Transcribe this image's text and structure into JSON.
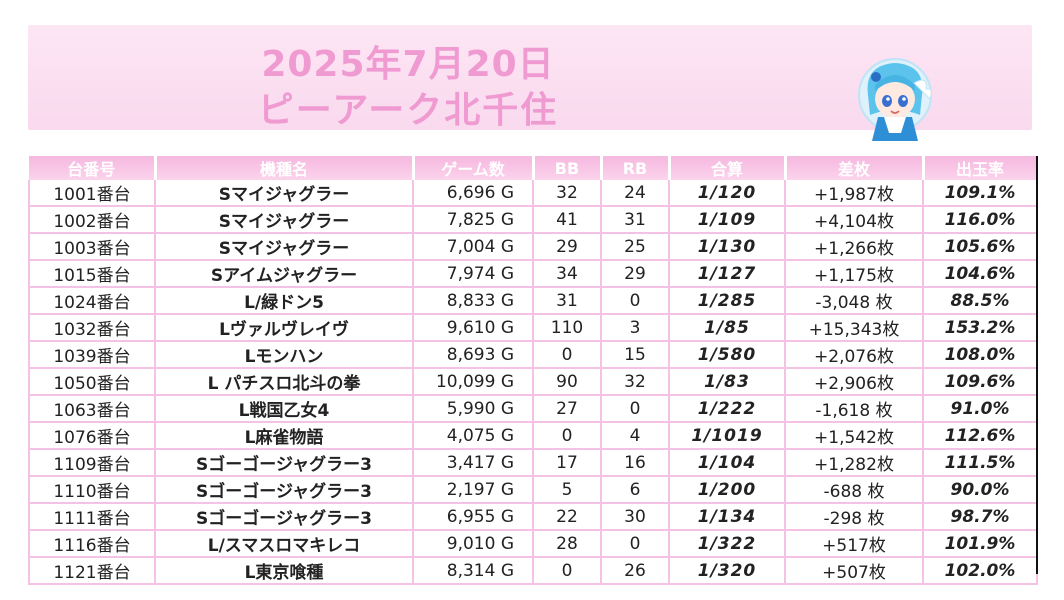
{
  "header": {
    "date": "2025年7月20日",
    "store": "ピーアーク北千住"
  },
  "colors": {
    "title_pink": "#f09ad2",
    "positive": "#1b28b8",
    "negative": "#e01414",
    "header_bg": "#f6b8df"
  },
  "table": {
    "columns": [
      "台番号",
      "機種名",
      "ゲーム数",
      "BB",
      "RB",
      "合算",
      "差枚",
      "出玉率"
    ],
    "rows": [
      {
        "no": "1001番台",
        "model": "Sマイジャグラー",
        "games": "6,696 G",
        "bb": "32",
        "rb": "24",
        "combined": "1/120",
        "diff": "+1,987枚",
        "sign": "pos",
        "rate": "109.1%"
      },
      {
        "no": "1002番台",
        "model": "Sマイジャグラー",
        "games": "7,825 G",
        "bb": "41",
        "rb": "31",
        "combined": "1/109",
        "diff": "+4,104枚",
        "sign": "pos",
        "rate": "116.0%"
      },
      {
        "no": "1003番台",
        "model": "Sマイジャグラー",
        "games": "7,004 G",
        "bb": "29",
        "rb": "25",
        "combined": "1/130",
        "diff": "+1,266枚",
        "sign": "pos",
        "rate": "105.6%"
      },
      {
        "no": "1015番台",
        "model": "Sアイムジャグラー",
        "games": "7,974 G",
        "bb": "34",
        "rb": "29",
        "combined": "1/127",
        "diff": "+1,175枚",
        "sign": "pos",
        "rate": "104.6%"
      },
      {
        "no": "1024番台",
        "model": "L/緑ドン5",
        "games": "8,833 G",
        "bb": "31",
        "rb": "0",
        "combined": "1/285",
        "diff": "-3,048 枚",
        "sign": "neg",
        "rate": "88.5%"
      },
      {
        "no": "1032番台",
        "model": "Lヴァルヴレイヴ",
        "games": "9,610 G",
        "bb": "110",
        "rb": "3",
        "combined": "1/85",
        "diff": "+15,343枚",
        "sign": "pos",
        "rate": "153.2%"
      },
      {
        "no": "1039番台",
        "model": "Lモンハン",
        "games": "8,693 G",
        "bb": "0",
        "rb": "15",
        "combined": "1/580",
        "diff": "+2,076枚",
        "sign": "pos",
        "rate": "108.0%"
      },
      {
        "no": "1050番台",
        "model": "L パチスロ北斗の拳",
        "games": "10,099 G",
        "bb": "90",
        "rb": "32",
        "combined": "1/83",
        "diff": "+2,906枚",
        "sign": "pos",
        "rate": "109.6%"
      },
      {
        "no": "1063番台",
        "model": "L戦国乙女4",
        "games": "5,990 G",
        "bb": "27",
        "rb": "0",
        "combined": "1/222",
        "diff": "-1,618 枚",
        "sign": "neg",
        "rate": "91.0%"
      },
      {
        "no": "1076番台",
        "model": "L麻雀物語",
        "games": "4,075 G",
        "bb": "0",
        "rb": "4",
        "combined": "1/1019",
        "diff": "+1,542枚",
        "sign": "pos",
        "rate": "112.6%"
      },
      {
        "no": "1109番台",
        "model": "Sゴーゴージャグラー3",
        "games": "3,417 G",
        "bb": "17",
        "rb": "16",
        "combined": "1/104",
        "diff": "+1,282枚",
        "sign": "pos",
        "rate": "111.5%"
      },
      {
        "no": "1110番台",
        "model": "Sゴーゴージャグラー3",
        "games": "2,197 G",
        "bb": "5",
        "rb": "6",
        "combined": "1/200",
        "diff": "-688 枚",
        "sign": "neg",
        "rate": "90.0%"
      },
      {
        "no": "1111番台",
        "model": "Sゴーゴージャグラー3",
        "games": "6,955 G",
        "bb": "22",
        "rb": "30",
        "combined": "1/134",
        "diff": "-298 枚",
        "sign": "neg",
        "rate": "98.7%"
      },
      {
        "no": "1116番台",
        "model": "L/スマスロマキレコ",
        "games": "9,010 G",
        "bb": "28",
        "rb": "0",
        "combined": "1/322",
        "diff": "+517枚",
        "sign": "pos",
        "rate": "101.9%"
      },
      {
        "no": "1121番台",
        "model": "L東京喰種",
        "games": "8,314 G",
        "bb": "0",
        "rb": "26",
        "combined": "1/320",
        "diff": "+507枚",
        "sign": "pos",
        "rate": "102.0%"
      }
    ]
  }
}
